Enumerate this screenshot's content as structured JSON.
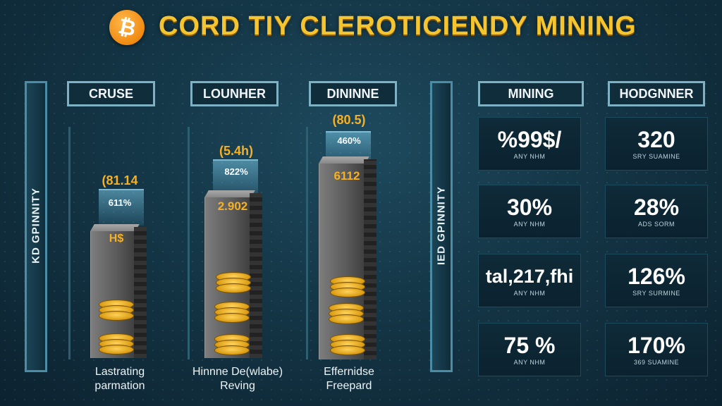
{
  "header": {
    "logo_symbol": "₿",
    "title": "CORD TIY CLEROTICIENDY MINING",
    "accent_color": "#f5c531",
    "logo_color": "#f08a12"
  },
  "side_labels": {
    "left": "KD GPINNITY",
    "right": "IED GPINNITY"
  },
  "columns": [
    {
      "header": "CRUSE",
      "value_top": "(81.14",
      "percent": "611%",
      "tower_value": "H$",
      "footer": [
        "Lastrating",
        "parmation"
      ]
    },
    {
      "header": "LOUNHER",
      "value_top": "(5.4h)",
      "percent": "822%",
      "tower_value": "2.902",
      "footer": [
        "Hinnne De(wlabe)",
        "Reving"
      ]
    },
    {
      "header": "DININNE",
      "value_top": "(80.5)",
      "percent": "460%",
      "tower_value": "6112",
      "footer": [
        "Effernidse",
        "Freepard"
      ]
    }
  ],
  "stat_headers": {
    "mining": "MINING",
    "hodgnner": "HODGNNER"
  },
  "stats": {
    "mining": [
      {
        "value": "%99$/",
        "sub": "ANY NHM"
      },
      {
        "value": "30%",
        "sub": "ANY NHM"
      },
      {
        "value": "tal,217,fhi",
        "sub": "ANY NHM"
      },
      {
        "value": "75 %",
        "sub": "ANY NHM"
      }
    ],
    "hodgnner": [
      {
        "value": "320",
        "sub": "SRY SUAMINE"
      },
      {
        "value": "28%",
        "sub": "ADS SORM"
      },
      {
        "value": "126%",
        "sub": "SRY SURMINE"
      },
      {
        "value": "170%",
        "sub": "369 SUAMINE"
      }
    ]
  }
}
